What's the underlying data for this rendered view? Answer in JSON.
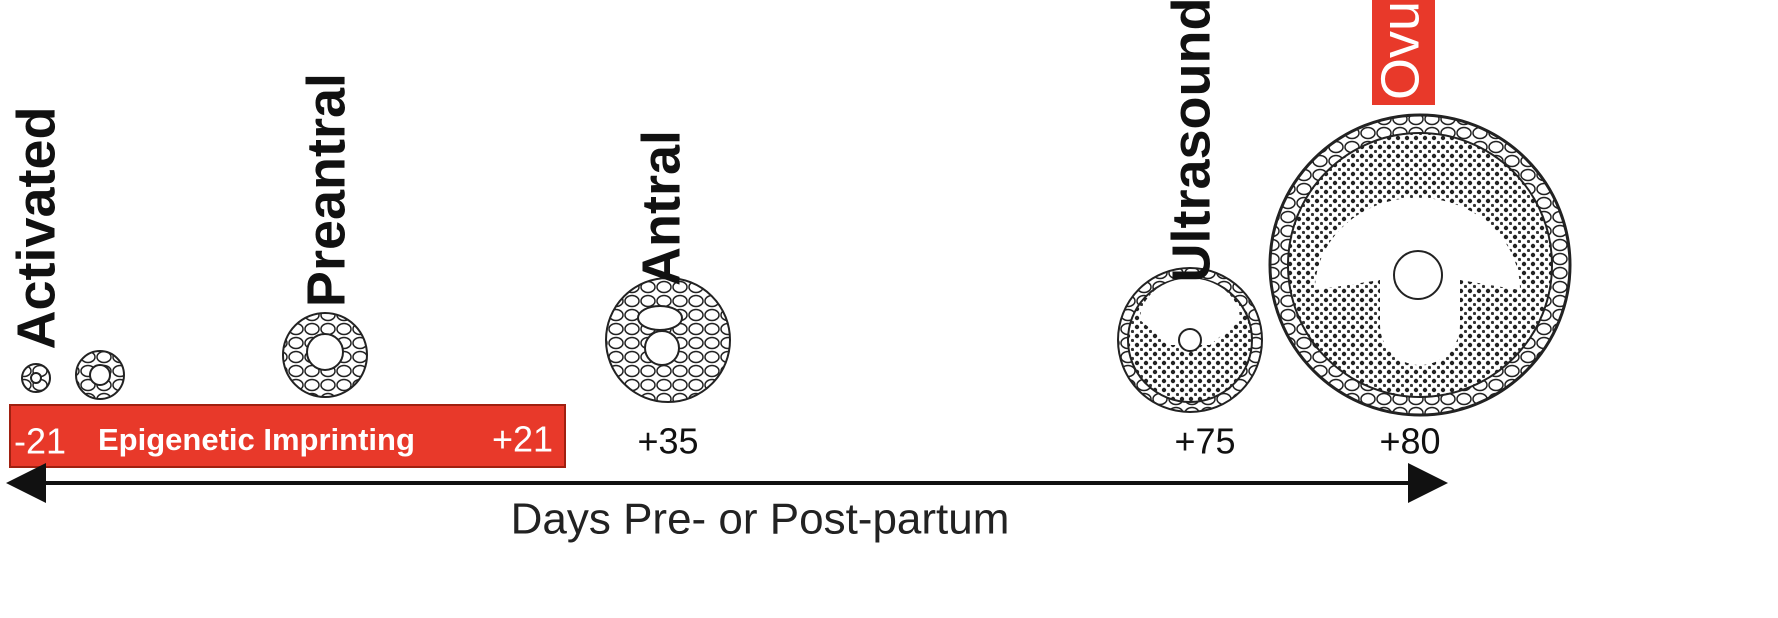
{
  "stages": [
    {
      "label": "Activated"
    },
    {
      "label": "Preantral"
    },
    {
      "label": "Antral"
    },
    {
      "label": "Ultrasound"
    },
    {
      "label": "Ovul"
    }
  ],
  "bar": {
    "start": "-21",
    "label": "Epigenetic Imprinting",
    "end": "+21"
  },
  "days": [
    "+35",
    "+75",
    "+80"
  ],
  "axis_label": "Days Pre- or Post-partum"
}
